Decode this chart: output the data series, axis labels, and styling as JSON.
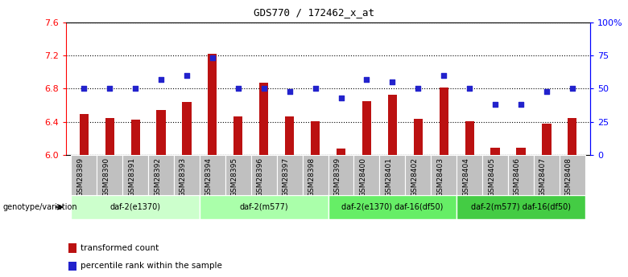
{
  "title": "GDS770 / 172462_x_at",
  "samples": [
    "GSM28389",
    "GSM28390",
    "GSM28391",
    "GSM28392",
    "GSM28393",
    "GSM28394",
    "GSM28395",
    "GSM28396",
    "GSM28397",
    "GSM28398",
    "GSM28399",
    "GSM28400",
    "GSM28401",
    "GSM28402",
    "GSM28403",
    "GSM28404",
    "GSM28405",
    "GSM28406",
    "GSM28407",
    "GSM28408"
  ],
  "bar_values": [
    6.49,
    6.45,
    6.43,
    6.54,
    6.64,
    7.22,
    6.47,
    6.87,
    6.47,
    6.41,
    6.08,
    6.65,
    6.73,
    6.44,
    6.81,
    6.41,
    6.09,
    6.09,
    6.38,
    6.45
  ],
  "dot_values_pct": [
    50,
    50,
    50,
    57,
    60,
    73,
    50,
    50,
    48,
    50,
    43,
    57,
    55,
    50,
    60,
    50,
    38,
    38,
    48,
    50
  ],
  "ylim_left": [
    6.0,
    7.6
  ],
  "ylim_right": [
    0,
    100
  ],
  "yticks_left": [
    6.0,
    6.4,
    6.8,
    7.2,
    7.6
  ],
  "yticks_right": [
    0,
    25,
    50,
    75,
    100
  ],
  "ytick_labels_right": [
    "0",
    "25",
    "50",
    "75",
    "100%"
  ],
  "bar_color": "#bb1111",
  "dot_color": "#2222cc",
  "groups": [
    {
      "label": "daf-2(e1370)",
      "start": 0,
      "end": 5,
      "color": "#ccffcc"
    },
    {
      "label": "daf-2(m577)",
      "start": 5,
      "end": 10,
      "color": "#aaffaa"
    },
    {
      "label": "daf-2(e1370) daf-16(df50)",
      "start": 10,
      "end": 15,
      "color": "#66ee66"
    },
    {
      "label": "daf-2(m577) daf-16(df50)",
      "start": 15,
      "end": 20,
      "color": "#44cc44"
    }
  ],
  "group_label": "genotype/variation",
  "legend_bar_label": "transformed count",
  "legend_dot_label": "percentile rank within the sample",
  "background_color": "#ffffff",
  "xtick_bg_color": "#c0c0c0"
}
